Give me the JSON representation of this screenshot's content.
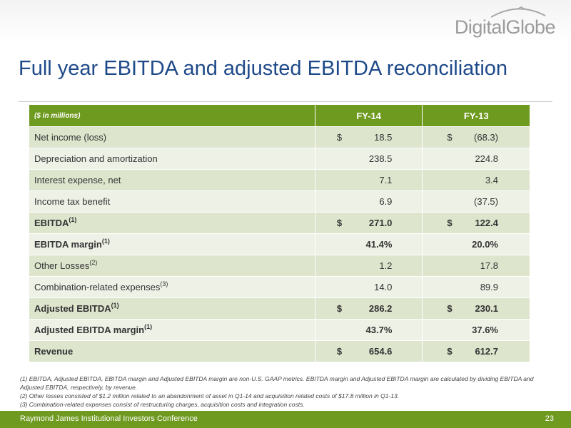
{
  "brand": {
    "logo_text": "DigitalGlobe"
  },
  "slide": {
    "title": "Full year EBITDA and adjusted EBITDA reconciliation"
  },
  "table": {
    "units": "($ in millions)",
    "col1": "FY-14",
    "col2": "FY-13",
    "rows": [
      {
        "label": "Net income (loss)",
        "sup": "",
        "v1_dollar": "$",
        "v1": "18.5",
        "v2_dollar": "$",
        "v2": "(68.3)",
        "bold": false
      },
      {
        "label": "Depreciation and amortization",
        "sup": "",
        "v1_dollar": "",
        "v1": "238.5",
        "v2_dollar": "",
        "v2": "224.8",
        "bold": false
      },
      {
        "label": "Interest expense, net",
        "sup": "",
        "v1_dollar": "",
        "v1": "7.1",
        "v2_dollar": "",
        "v2": "3.4",
        "bold": false
      },
      {
        "label": "Income tax benefit",
        "sup": "",
        "v1_dollar": "",
        "v1": "6.9",
        "v2_dollar": "",
        "v2": "(37.5)",
        "bold": false
      },
      {
        "label": "EBITDA",
        "sup": "(1)",
        "v1_dollar": "$",
        "v1": "271.0",
        "v2_dollar": "$",
        "v2": "122.4",
        "bold": true
      },
      {
        "label": "EBITDA margin",
        "sup": "(1)",
        "v1_dollar": "",
        "v1": "41.4%",
        "v2_dollar": "",
        "v2": "20.0%",
        "bold": true
      },
      {
        "label": "Other Losses",
        "sup": "(2)",
        "v1_dollar": "",
        "v1": "1.2",
        "v2_dollar": "",
        "v2": "17.8",
        "bold": false
      },
      {
        "label": "Combination-related expenses",
        "sup": "(3)",
        "v1_dollar": "",
        "v1": "14.0",
        "v2_dollar": "",
        "v2": "89.9",
        "bold": false
      },
      {
        "label": "Adjusted EBITDA",
        "sup": "(1)",
        "v1_dollar": "$",
        "v1": "286.2",
        "v2_dollar": "$",
        "v2": "230.1",
        "bold": true
      },
      {
        "label": "Adjusted EBITDA margin",
        "sup": "(1)",
        "v1_dollar": "",
        "v1": "43.7%",
        "v2_dollar": "",
        "v2": "37.6%",
        "bold": true
      },
      {
        "label": "Revenue",
        "sup": "",
        "v1_dollar": "$",
        "v1": "654.6",
        "v2_dollar": "$",
        "v2": "612.7",
        "bold": true
      }
    ]
  },
  "footnotes": [
    "(1) EBITDA, Adjusted EBITDA, EBITDA margin and Adjusted EBITDA margin are non-U.S. GAAP metrics.  EBITDA margin and Adjusted EBITDA margin are calculated by dividing EBITDA and Adjusted EBITDA, respectively, by revenue.",
    "(2) Other losses consisted of $1.2 million related to an abandonment of asset in Q1-14 and acquisition related costs of $17.8 million in Q1-13.",
    "(3) Combination-related expenses consist of restructuring charges, acquisition costs and integration costs."
  ],
  "footer": {
    "text": "Raymond James Institutional Investors Conference",
    "page_number": "23"
  }
}
